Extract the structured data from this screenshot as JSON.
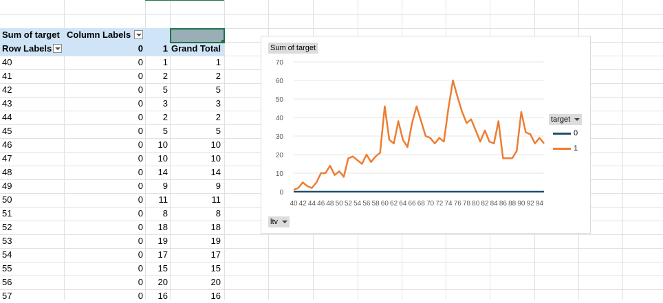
{
  "pivot": {
    "sum_label": "Sum of target",
    "column_labels": "Column Labels",
    "row_labels": "Row Labels",
    "col_0": "0",
    "col_1": "1",
    "grand_total": "Grand Total",
    "rows": [
      {
        "label": "40",
        "c0": "0",
        "c1": "1",
        "total": "1"
      },
      {
        "label": "41",
        "c0": "0",
        "c1": "2",
        "total": "2"
      },
      {
        "label": "42",
        "c0": "0",
        "c1": "5",
        "total": "5"
      },
      {
        "label": "43",
        "c0": "0",
        "c1": "3",
        "total": "3"
      },
      {
        "label": "44",
        "c0": "0",
        "c1": "2",
        "total": "2"
      },
      {
        "label": "45",
        "c0": "0",
        "c1": "5",
        "total": "5"
      },
      {
        "label": "46",
        "c0": "0",
        "c1": "10",
        "total": "10"
      },
      {
        "label": "47",
        "c0": "0",
        "c1": "10",
        "total": "10"
      },
      {
        "label": "48",
        "c0": "0",
        "c1": "14",
        "total": "14"
      },
      {
        "label": "49",
        "c0": "0",
        "c1": "9",
        "total": "9"
      },
      {
        "label": "50",
        "c0": "0",
        "c1": "11",
        "total": "11"
      },
      {
        "label": "51",
        "c0": "0",
        "c1": "8",
        "total": "8"
      },
      {
        "label": "52",
        "c0": "0",
        "c1": "18",
        "total": "18"
      },
      {
        "label": "53",
        "c0": "0",
        "c1": "19",
        "total": "19"
      },
      {
        "label": "54",
        "c0": "0",
        "c1": "17",
        "total": "17"
      },
      {
        "label": "55",
        "c0": "0",
        "c1": "15",
        "total": "15"
      },
      {
        "label": "56",
        "c0": "0",
        "c1": "20",
        "total": "20"
      },
      {
        "label": "57",
        "c0": "0",
        "c1": "16",
        "total": "16"
      }
    ]
  },
  "chart": {
    "value_button": "Sum of target",
    "axis_button": "ltv",
    "legend_button": "target",
    "legend_items": [
      "0",
      "1"
    ]
  },
  "chart_data": {
    "type": "line",
    "x": [
      40,
      41,
      42,
      43,
      44,
      45,
      46,
      47,
      48,
      49,
      50,
      51,
      52,
      53,
      54,
      55,
      56,
      57,
      58,
      59,
      60,
      61,
      62,
      63,
      64,
      65,
      66,
      67,
      68,
      69,
      70,
      71,
      72,
      73,
      74,
      75,
      76,
      77,
      78,
      79,
      80,
      81,
      82,
      83,
      84,
      85,
      86,
      87,
      88,
      89,
      90,
      91,
      92,
      93,
      94,
      95
    ],
    "x_tick_labels": [
      "40",
      "42",
      "44",
      "46",
      "48",
      "50",
      "52",
      "54",
      "56",
      "58",
      "60",
      "62",
      "64",
      "66",
      "68",
      "70",
      "72",
      "74",
      "76",
      "78",
      "80",
      "82",
      "84",
      "86",
      "88",
      "90",
      "92",
      "94"
    ],
    "series": [
      {
        "name": "0",
        "color": "#1f4e6b",
        "values": [
          0,
          0,
          0,
          0,
          0,
          0,
          0,
          0,
          0,
          0,
          0,
          0,
          0,
          0,
          0,
          0,
          0,
          0,
          0,
          0,
          0,
          0,
          0,
          0,
          0,
          0,
          0,
          0,
          0,
          0,
          0,
          0,
          0,
          0,
          0,
          0,
          0,
          0,
          0,
          0,
          0,
          0,
          0,
          0,
          0,
          0,
          0,
          0,
          0,
          0,
          0,
          0,
          0,
          0,
          0,
          0
        ]
      },
      {
        "name": "1",
        "color": "#ed7d31",
        "values": [
          1,
          2,
          5,
          3,
          2,
          5,
          10,
          10,
          14,
          9,
          11,
          8,
          18,
          19,
          17,
          15,
          20,
          16,
          19,
          21,
          46,
          28,
          26,
          38,
          28,
          24,
          37,
          46,
          38,
          30,
          29,
          26,
          29,
          27,
          45,
          60,
          51,
          43,
          37,
          39,
          33,
          27,
          33,
          27,
          26,
          38,
          18,
          18,
          18,
          22,
          43,
          32,
          31,
          26,
          29,
          26
        ]
      }
    ],
    "ylim": [
      0,
      70
    ],
    "y_ticks": [
      "0",
      "10",
      "20",
      "30",
      "40",
      "50",
      "60",
      "70"
    ],
    "grid": true,
    "legend": "right"
  }
}
